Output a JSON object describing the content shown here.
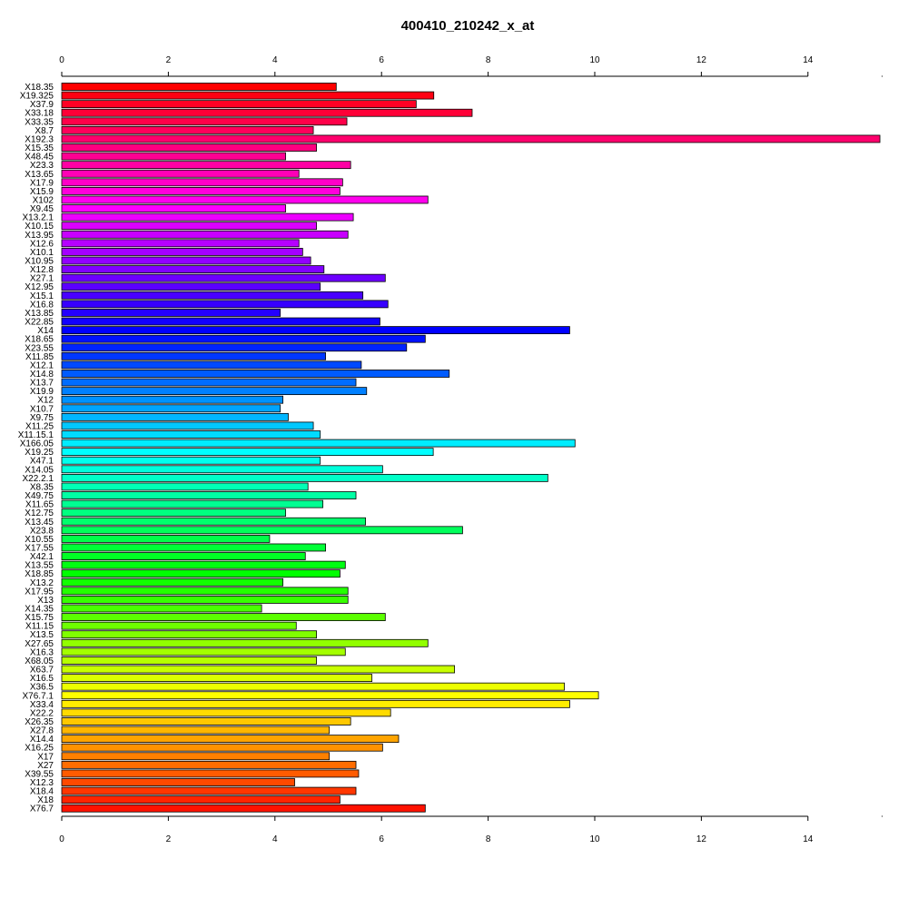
{
  "chart_data": {
    "type": "bar",
    "orientation": "horizontal",
    "title": "400410_210242_x_at",
    "xlabel": "",
    "ylabel": "",
    "xlim": [
      0,
      15.4
    ],
    "x_ticks": [
      "0",
      "2",
      "4",
      "6",
      "8",
      "10",
      "12",
      "14"
    ],
    "grid": false,
    "legend": "none",
    "color_scheme": "rainbow",
    "categories": [
      "X18.35",
      "X19.325",
      "X37.9",
      "X33.18",
      "X33.35",
      "X8.7",
      "X192.3",
      "X15.35",
      "X48.45",
      "X23.3",
      "X13.65",
      "X17.9",
      "X15.9",
      "X102",
      "X9.45",
      "X13.2.1",
      "X10.15",
      "X13.95",
      "X12.6",
      "X10.1",
      "X10.95",
      "X12.8",
      "X27.1",
      "X12.95",
      "X15.1",
      "X16.8",
      "X13.85",
      "X22.85",
      "X14",
      "X18.65",
      "X23.55",
      "X11.85",
      "X12.1",
      "X14.8",
      "X13.7",
      "X19.9",
      "X12",
      "X10.7",
      "X9.75",
      "X11.25",
      "X11.15.1",
      "X166.05",
      "X19.25",
      "X47.1",
      "X14.05",
      "X22.2.1",
      "X8.35",
      "X49.75",
      "X11.65",
      "X12.75",
      "X13.45",
      "X23.8",
      "X10.55",
      "X17.55",
      "X42.1",
      "X13.55",
      "X18.85",
      "X13.2",
      "X17.95",
      "X13",
      "X14.35",
      "X15.75",
      "X11.15",
      "X13.5",
      "X27.65",
      "X16.3",
      "X68.05",
      "X63.7",
      "X16.5",
      "X36.5",
      "X76.7.1",
      "X33.4",
      "X22.2",
      "X26.35",
      "X27.8",
      "X14.4",
      "X16.25",
      "X17",
      "X27",
      "X39.55",
      "X12.3",
      "X18.4",
      "X18",
      "X76.7"
    ],
    "values": [
      5.15,
      6.98,
      6.65,
      7.7,
      5.35,
      4.72,
      15.35,
      4.78,
      4.2,
      5.42,
      4.45,
      5.27,
      5.22,
      6.87,
      4.2,
      5.47,
      4.78,
      5.37,
      4.45,
      4.52,
      4.67,
      4.92,
      6.07,
      4.85,
      5.65,
      6.12,
      4.1,
      5.97,
      9.53,
      6.82,
      6.47,
      4.95,
      5.62,
      7.27,
      5.52,
      5.72,
      4.15,
      4.1,
      4.25,
      4.72,
      4.85,
      9.63,
      6.97,
      4.85,
      6.02,
      9.12,
      4.62,
      5.52,
      4.9,
      4.2,
      5.7,
      7.52,
      3.9,
      4.95,
      4.57,
      5.32,
      5.22,
      4.15,
      5.37,
      5.37,
      3.75,
      6.07,
      4.4,
      4.78,
      6.87,
      5.32,
      4.78,
      7.37,
      5.82,
      9.43,
      10.07,
      9.53,
      6.17,
      5.42,
      5.02,
      6.32,
      6.02,
      5.02,
      5.52,
      5.57,
      4.37,
      5.52,
      5.22,
      6.82
    ]
  }
}
